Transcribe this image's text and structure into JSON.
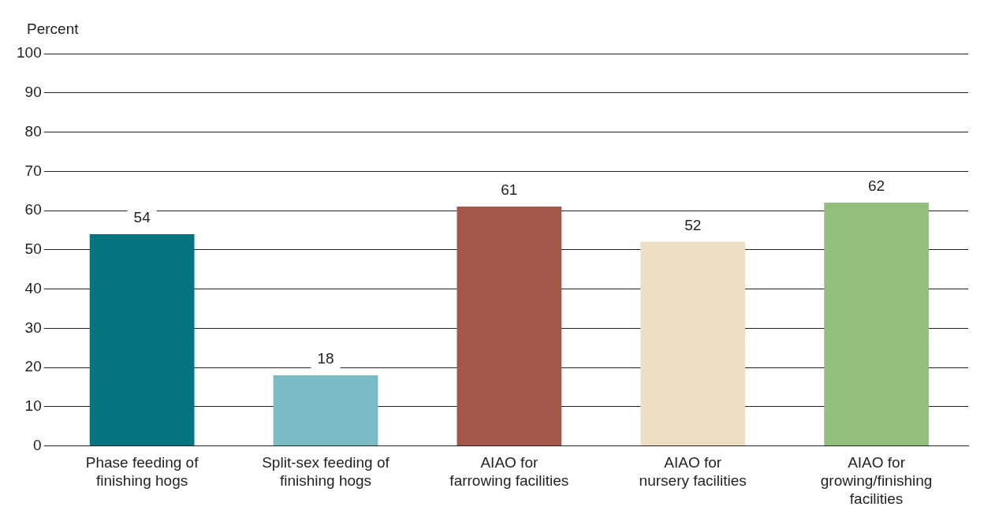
{
  "chart_data": {
    "type": "bar",
    "ylabel": "Percent",
    "categories": [
      "Phase feeding of\nfinishing hogs",
      "Split-sex feeding of\nfinishing hogs",
      "AIAO for\nfarrowing facilities",
      "AIAO for\nnursery facilities",
      "AIAO for\ngrowing/finishing\nfacilities"
    ],
    "values": [
      54,
      18,
      61,
      52,
      62
    ],
    "colors": [
      "#05747f",
      "#7bbcc4",
      "#a3564a",
      "#eddfc4",
      "#94be7c"
    ],
    "ylim": [
      0,
      100
    ],
    "yticks": [
      0,
      10,
      20,
      30,
      40,
      50,
      60,
      70,
      80,
      90,
      100
    ],
    "grid": "y",
    "data_labels": true,
    "legend": false
  }
}
